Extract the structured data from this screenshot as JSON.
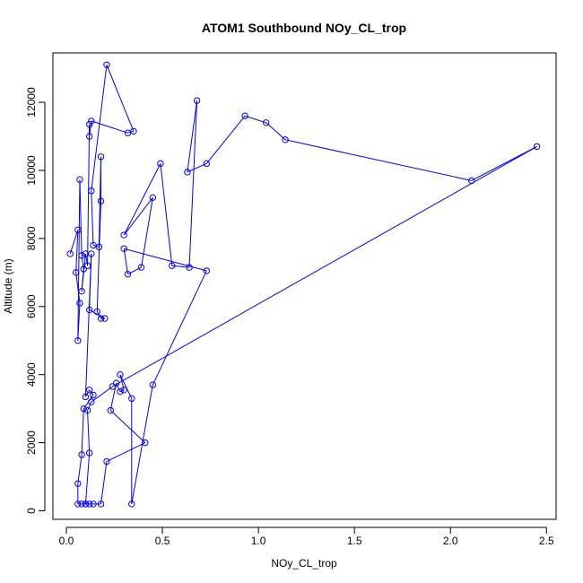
{
  "chart_data": {
    "type": "line",
    "title": "ATOM1 Southbound NOy_CL_trop",
    "xlabel": "NOy_CL_trop",
    "ylabel": "Altitude (m)",
    "xlim": [
      -0.07,
      2.55
    ],
    "ylim": [
      -250,
      13450
    ],
    "x_ticks": [
      "0.0",
      "0.5",
      "1.0",
      "1.5",
      "2.0",
      "2.5"
    ],
    "y_ticks": [
      "0",
      "2000",
      "4000",
      "6000",
      "8000",
      "10000",
      "12000"
    ],
    "grid": false,
    "marker": "open-circle",
    "series_color": "#0000ff",
    "series": [
      {
        "points": [
          [
            0.02,
            7550
          ],
          [
            0.06,
            8250
          ],
          [
            0.05,
            7000
          ],
          [
            0.07,
            6100
          ],
          [
            0.06,
            5000
          ],
          [
            0.07,
            9730
          ],
          [
            0.08,
            7500
          ],
          [
            0.09,
            7100
          ],
          [
            0.08,
            6450
          ],
          [
            0.1,
            7550
          ],
          [
            0.11,
            7200
          ],
          [
            0.12,
            11350
          ],
          [
            0.12,
            11000
          ],
          [
            0.13,
            11450
          ],
          [
            0.32,
            11100
          ],
          [
            0.35,
            11150
          ],
          [
            0.21,
            13100
          ],
          [
            0.13,
            9400
          ],
          [
            0.14,
            7800
          ],
          [
            0.17,
            7750
          ],
          [
            0.18,
            10400
          ],
          [
            0.18,
            9100
          ],
          [
            0.16,
            5850
          ],
          [
            0.18,
            5650
          ],
          [
            0.2,
            5650
          ],
          [
            0.12,
            5900
          ],
          [
            0.13,
            7550
          ],
          [
            0.1,
            3350
          ],
          [
            0.12,
            3550
          ],
          [
            0.14,
            3400
          ],
          [
            0.09,
            3000
          ],
          [
            0.08,
            1650
          ],
          [
            0.06,
            800
          ],
          [
            0.06,
            200
          ],
          [
            0.08,
            200
          ],
          [
            0.1,
            200
          ],
          [
            0.12,
            200
          ],
          [
            0.14,
            200
          ],
          [
            0.18,
            200
          ],
          [
            0.21,
            1450
          ],
          [
            0.41,
            2000
          ],
          [
            0.23,
            2950
          ],
          [
            0.26,
            3750
          ],
          [
            0.28,
            3500
          ],
          [
            0.3,
            3550
          ],
          [
            0.28,
            4000
          ],
          [
            0.34,
            3300
          ],
          [
            0.34,
            200
          ],
          [
            0.45,
            3700
          ],
          [
            0.73,
            7050
          ],
          [
            0.3,
            7700
          ],
          [
            0.32,
            6950
          ],
          [
            0.39,
            7150
          ],
          [
            0.45,
            9200
          ],
          [
            0.3,
            8100
          ],
          [
            0.49,
            10200
          ],
          [
            0.55,
            7200
          ],
          [
            0.64,
            7150
          ],
          [
            0.68,
            12050
          ],
          [
            0.63,
            9950
          ],
          [
            0.73,
            10200
          ],
          [
            0.93,
            11600
          ],
          [
            1.04,
            11400
          ],
          [
            1.14,
            10900
          ],
          [
            2.11,
            9700
          ],
          [
            2.45,
            10700
          ],
          [
            0.24,
            3650
          ],
          [
            0.13,
            3200
          ],
          [
            0.11,
            2950
          ],
          [
            0.12,
            1700
          ],
          [
            0.1,
            200
          ]
        ]
      }
    ]
  }
}
